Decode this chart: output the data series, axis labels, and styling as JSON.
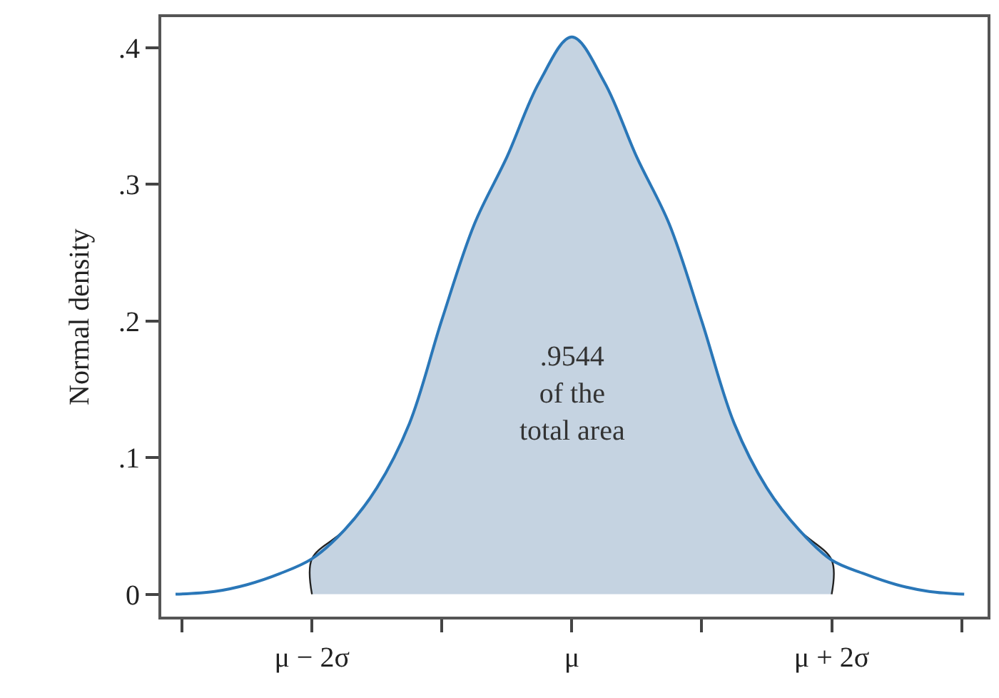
{
  "chart_data": {
    "type": "line",
    "ylabel": "Normal density",
    "xlim": [
      -3.16,
      3.2
    ],
    "ylim": [
      -0.0164,
      0.4225
    ],
    "xticks": [
      {
        "value": -3,
        "label": null
      },
      {
        "value": -2,
        "label": "μ − 2σ"
      },
      {
        "value": -1,
        "label": null
      },
      {
        "value": 0,
        "label": "μ"
      },
      {
        "value": 1,
        "label": null
      },
      {
        "value": 2,
        "label": "μ + 2σ"
      },
      {
        "value": 3,
        "label": null
      }
    ],
    "yticks": [
      0,
      {
        "value": 0.1,
        "label": ".1"
      },
      {
        "value": 0.2,
        "label": ".2"
      },
      {
        "value": 0.3,
        "label": ".3"
      },
      {
        "value": 0.4,
        "label": ".4"
      }
    ],
    "grid": false,
    "marker": "none",
    "line_style": "solid",
    "series": [
      {
        "type": "area",
        "color": "#c5d3e1",
        "x": [
          -2,
          -2,
          -1.75,
          -1.5,
          -1.25,
          -1,
          -0.75,
          -0.5,
          -0.25,
          0,
          0.25,
          0.5,
          0.75,
          1,
          1.25,
          1.5,
          1.75,
          2,
          2
        ],
        "values": [
          0,
          0.026,
          0.047,
          0.078,
          0.125,
          0.201,
          0.271,
          0.32,
          0.375,
          0.408,
          0.375,
          0.32,
          0.271,
          0.2,
          0.125,
          0.078,
          0.047,
          0.025,
          0
        ]
      },
      {
        "color": "#2a77b8",
        "x": [
          -3.05,
          -2.75,
          -2.5,
          -2.25,
          -2,
          -1.75,
          -1.5,
          -1.25,
          -1,
          -0.75,
          -0.5,
          -0.25,
          0,
          0.25,
          0.5,
          0.75,
          1,
          1.25,
          1.5,
          1.75,
          2,
          2.25,
          2.5,
          2.75,
          3.02
        ],
        "values": [
          0,
          0.002,
          0.007,
          0.015,
          0.026,
          0.047,
          0.078,
          0.125,
          0.201,
          0.271,
          0.32,
          0.375,
          0.408,
          0.375,
          0.32,
          0.271,
          0.2,
          0.125,
          0.078,
          0.047,
          0.025,
          0.015,
          0.007,
          0.002,
          0
        ]
      }
    ],
    "annotations": [
      ".9544\nof the\ntotal area"
    ]
  }
}
